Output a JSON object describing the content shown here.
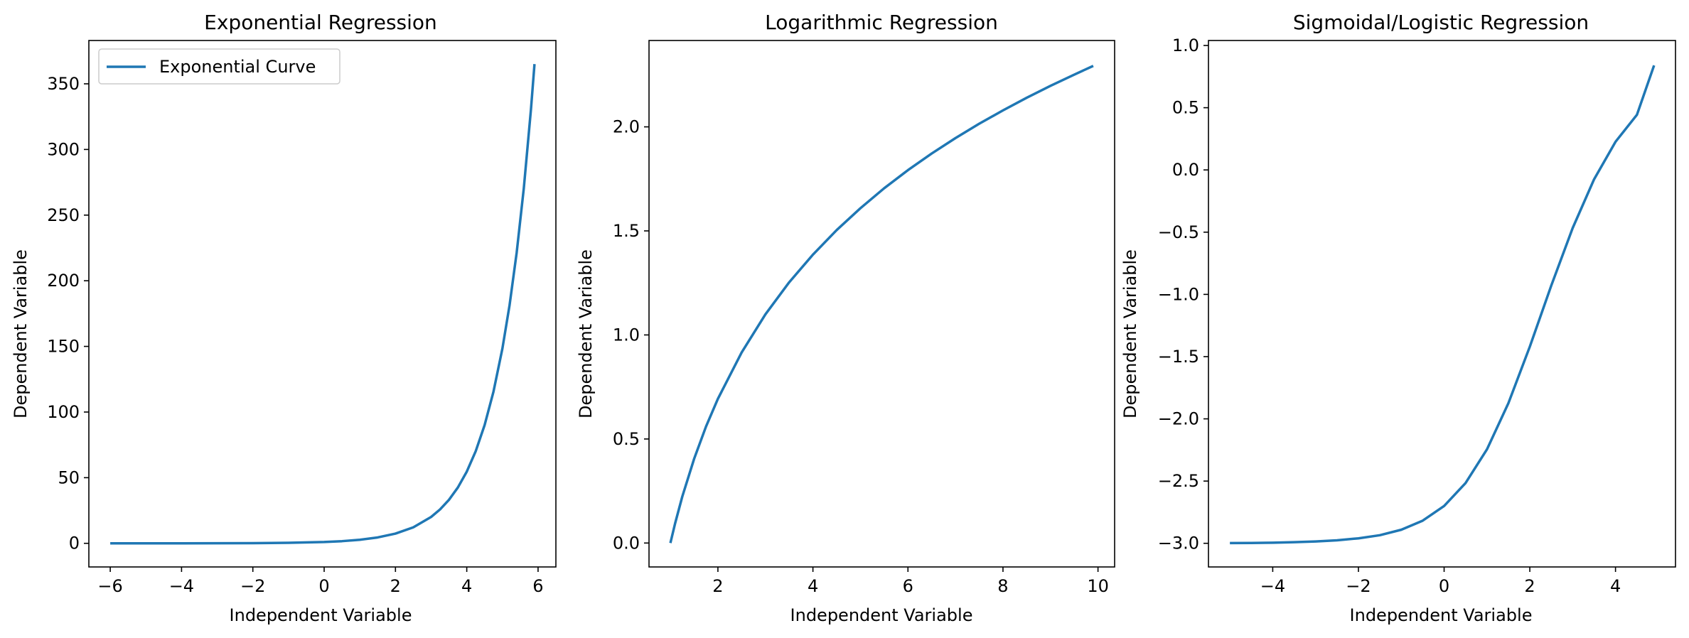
{
  "figure": {
    "background": "#ffffff",
    "line_color": "#1f77b4"
  },
  "chart_data": [
    {
      "type": "line",
      "title": "Exponential Regression",
      "xlabel": "Independent Variable",
      "ylabel": "Dependent Variable",
      "xlim": [
        -6.6,
        6.5
      ],
      "ylim": [
        -18,
        383
      ],
      "xticks": [
        -6,
        -4,
        -2,
        0,
        2,
        4,
        6
      ],
      "yticks": [
        0,
        50,
        100,
        150,
        200,
        250,
        300,
        350
      ],
      "xtick_labels": [
        "−6",
        "−4",
        "−2",
        "0",
        "2",
        "4",
        "6"
      ],
      "ytick_labels": [
        "0",
        "50",
        "100",
        "150",
        "200",
        "250",
        "300",
        "350"
      ],
      "grid": false,
      "legend": {
        "placement": "upper-left",
        "entries": [
          "Exponential Curve"
        ]
      },
      "series": [
        {
          "name": "Exponential Curve",
          "color": "#1f77b4",
          "x": [
            -6.0,
            -5.0,
            -4.0,
            -3.0,
            -2.0,
            -1.0,
            0.0,
            0.5,
            1.0,
            1.5,
            2.0,
            2.5,
            3.0,
            3.25,
            3.5,
            3.75,
            4.0,
            4.25,
            4.5,
            4.75,
            5.0,
            5.2,
            5.4,
            5.6,
            5.8,
            5.9
          ],
          "y": [
            0.0,
            0.01,
            0.02,
            0.05,
            0.14,
            0.37,
            1.0,
            1.65,
            2.72,
            4.48,
            7.39,
            12.18,
            20.09,
            25.79,
            33.12,
            42.52,
            54.6,
            70.11,
            90.02,
            115.58,
            148.41,
            181.27,
            221.41,
            270.43,
            330.3,
            365.04
          ]
        }
      ]
    },
    {
      "type": "line",
      "title": "Logarithmic Regression",
      "xlabel": "Independent Variable",
      "ylabel": "Dependent Variable",
      "xlim": [
        0.55,
        10.35
      ],
      "ylim": [
        -0.115,
        2.415
      ],
      "xticks": [
        2,
        4,
        6,
        8,
        10
      ],
      "yticks": [
        0.0,
        0.5,
        1.0,
        1.5,
        2.0
      ],
      "xtick_labels": [
        "2",
        "4",
        "6",
        "8",
        "10"
      ],
      "ytick_labels": [
        "0.0",
        "0.5",
        "1.0",
        "1.5",
        "2.0"
      ],
      "grid": false,
      "series": [
        {
          "color": "#1f77b4",
          "x": [
            1.0,
            1.1,
            1.25,
            1.5,
            1.75,
            2.0,
            2.5,
            3.0,
            3.5,
            4.0,
            4.5,
            5.0,
            5.5,
            6.0,
            6.5,
            7.0,
            7.5,
            8.0,
            8.5,
            9.0,
            9.5,
            9.9
          ],
          "y": [
            0.0,
            0.095,
            0.223,
            0.405,
            0.56,
            0.693,
            0.916,
            1.099,
            1.253,
            1.386,
            1.504,
            1.609,
            1.705,
            1.792,
            1.872,
            1.946,
            2.015,
            2.079,
            2.14,
            2.197,
            2.251,
            2.293
          ]
        }
      ]
    },
    {
      "type": "line",
      "title": "Sigmoidal/Logistic Regression",
      "xlabel": "Independent Variable",
      "ylabel": "Dependent Variable",
      "xlim": [
        -5.5,
        5.4
      ],
      "ylim": [
        -3.19,
        1.04
      ],
      "xticks": [
        -4,
        -2,
        0,
        2,
        4
      ],
      "yticks": [
        -3.0,
        -2.5,
        -2.0,
        -1.5,
        -1.0,
        -0.5,
        0.0,
        0.5,
        1.0
      ],
      "xtick_labels": [
        "−4",
        "−2",
        "0",
        "2",
        "4"
      ],
      "ytick_labels": [
        "−3.0",
        "−2.5",
        "−2.0",
        "−1.5",
        "−1.0",
        "−0.5",
        "0.0",
        "0.5",
        "1.0"
      ],
      "grid": false,
      "series": [
        {
          "color": "#1f77b4",
          "x": [
            -5.0,
            -4.5,
            -4.0,
            -3.5,
            -3.0,
            -2.5,
            -2.0,
            -1.5,
            -1.0,
            -0.5,
            0.0,
            0.5,
            1.0,
            1.5,
            2.0,
            2.5,
            3.0,
            3.5,
            4.0,
            4.5,
            4.9
          ],
          "y": [
            -2.998,
            -2.997,
            -2.995,
            -2.991,
            -2.985,
            -2.976,
            -2.96,
            -2.935,
            -2.891,
            -2.818,
            -2.7,
            -2.516,
            -2.245,
            -1.874,
            -1.42,
            -0.93,
            -0.467,
            -0.075,
            0.226,
            0.443,
            0.84
          ]
        }
      ]
    }
  ]
}
